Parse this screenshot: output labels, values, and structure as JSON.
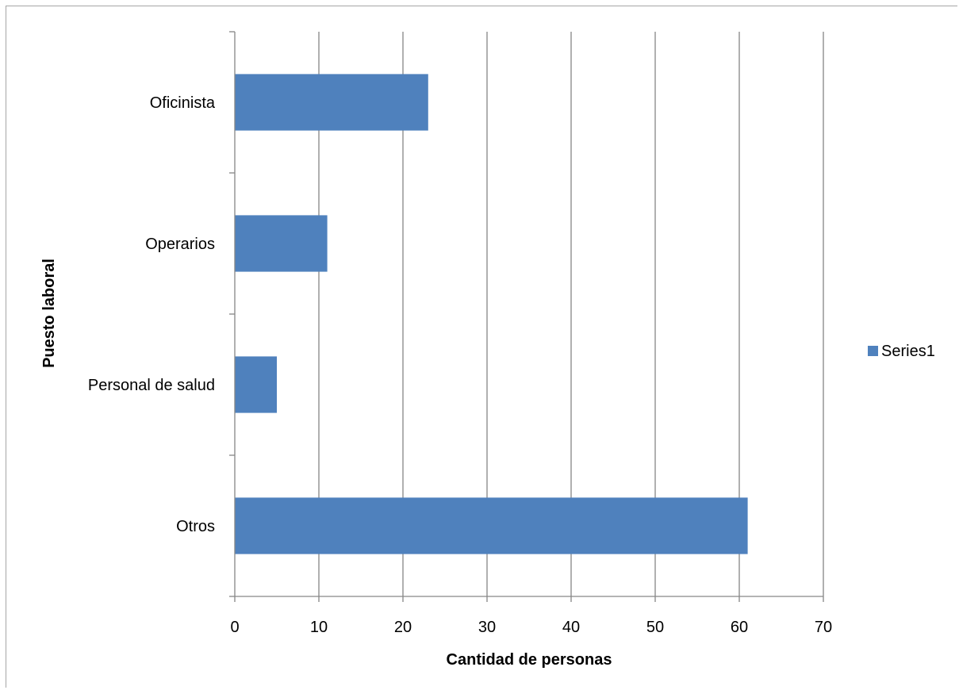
{
  "chart_data": {
    "type": "bar",
    "orientation": "horizontal",
    "categories": [
      "Oficinista",
      "Operarios",
      "Personal de salud",
      "Otros"
    ],
    "series": [
      {
        "name": "Series1",
        "values": [
          23,
          11,
          5,
          61
        ],
        "color": "#4f81bd"
      }
    ],
    "xlabel": "Cantidad de personas",
    "ylabel": "Puesto laboral",
    "xlim": [
      0,
      70
    ],
    "xticks": [
      "0",
      "10",
      "20",
      "30",
      "40",
      "50",
      "60",
      "70"
    ],
    "grid": "vertical",
    "legend_position": "right",
    "gridline_color": "#868686"
  }
}
